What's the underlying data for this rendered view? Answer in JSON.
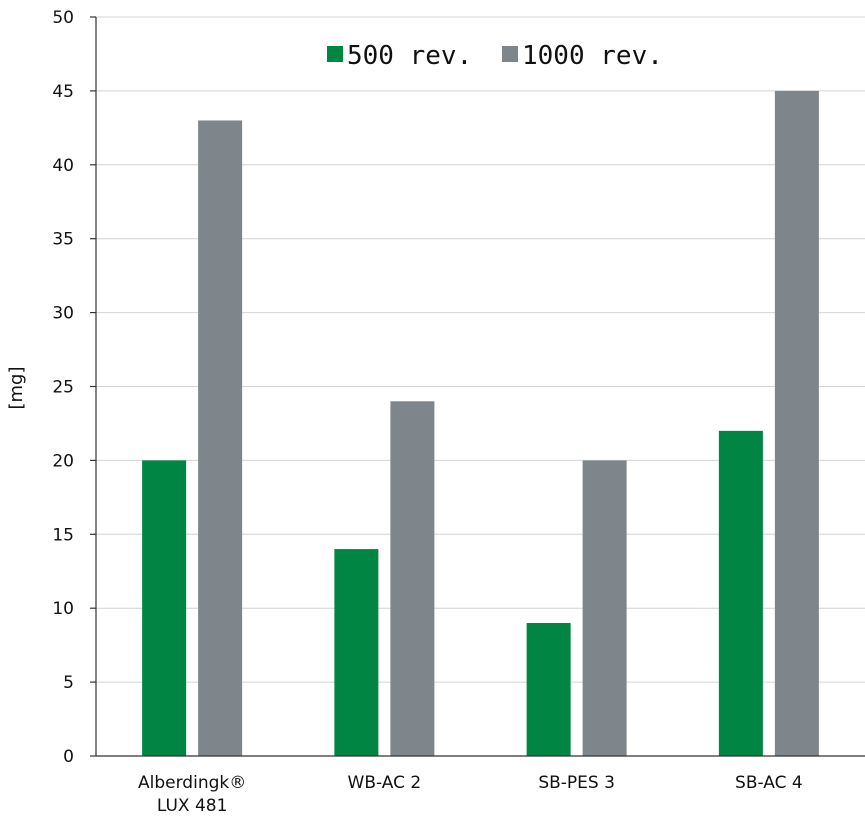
{
  "chart_data": {
    "type": "bar",
    "categories": [
      [
        "Alberdingk®",
        "LUX 481"
      ],
      [
        "WB-AC 2"
      ],
      [
        "SB-PES 3"
      ],
      [
        "SB-AC 4"
      ]
    ],
    "series": [
      {
        "name": "500 rev.",
        "values": [
          20,
          14,
          9,
          22
        ],
        "color": "#008542"
      },
      {
        "name": "1000 rev.",
        "values": [
          43,
          24,
          20,
          45
        ],
        "color": "#7f868b"
      }
    ],
    "ylabel": "[mg]",
    "xlabel": "",
    "ylim": [
      0,
      50
    ],
    "yticks": [
      0,
      5,
      10,
      15,
      20,
      25,
      30,
      35,
      40,
      45,
      50
    ],
    "grid": true,
    "legend_position": "top-center"
  }
}
